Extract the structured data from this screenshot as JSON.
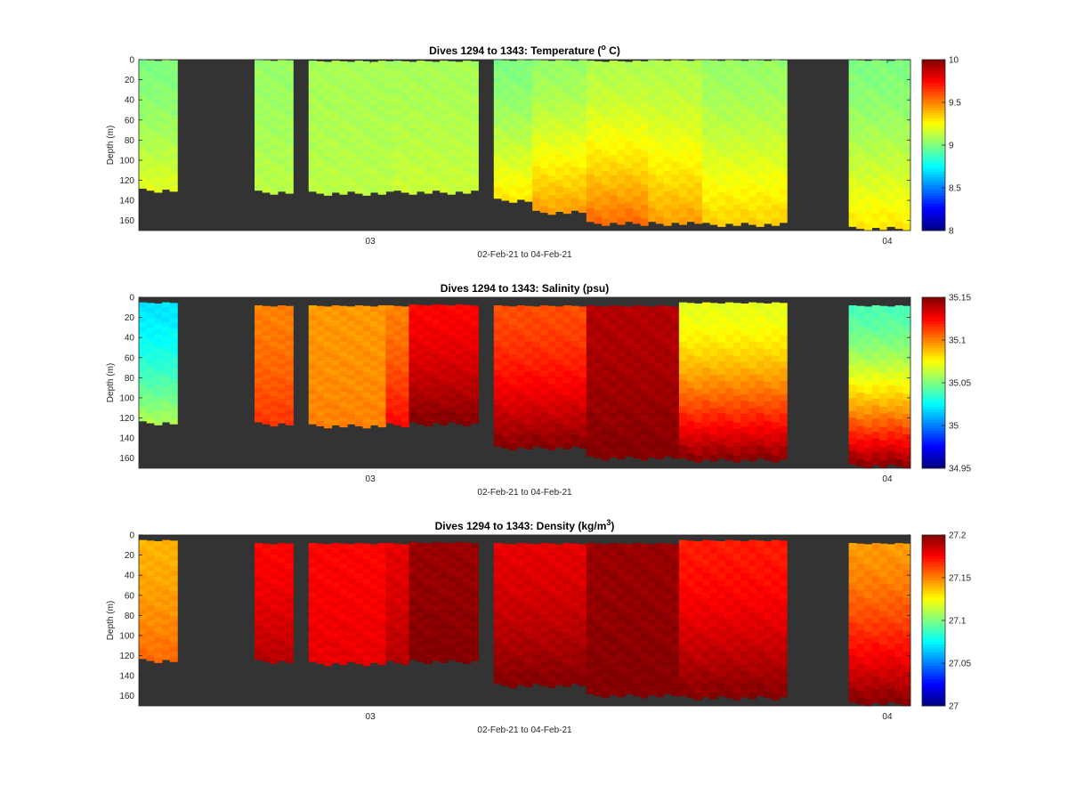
{
  "figure": {
    "background": "#ffffff",
    "no_data_color": "#333333",
    "colormap": "jet"
  },
  "chart_data": [
    {
      "type": "heatmap",
      "title": "Dives 1294 to 1343: Temperature (",
      "title_sup": "o",
      "title_after": " C)",
      "xlabel": "02-Feb-21 to 04-Feb-21",
      "ylabel": "Depth (m)",
      "x_ticks": [
        "03",
        "04"
      ],
      "y_ticks": [
        "0",
        "20",
        "40",
        "60",
        "80",
        "100",
        "120",
        "140",
        "160"
      ],
      "ylim": [
        0,
        170
      ],
      "y_reversed": true,
      "colorbar": {
        "min": 8,
        "max": 10,
        "ticks": [
          "10",
          "9.5",
          "9",
          "8.5",
          "8"
        ]
      },
      "profiles": [
        {
          "start": 0,
          "end": 5,
          "top": 0,
          "bottom": 130,
          "surface": 9.0,
          "deep": 9.2
        },
        {
          "start": 15,
          "end": 20,
          "top": 0,
          "bottom": 132,
          "surface": 9.05,
          "deep": 9.12
        },
        {
          "start": 22,
          "end": 33,
          "top": 1,
          "bottom": 133,
          "surface": 9.08,
          "deep": 9.12
        },
        {
          "start": 33,
          "end": 44,
          "top": 1,
          "bottom": 132,
          "surface": 9.08,
          "deep": 9.15
        },
        {
          "start": 46,
          "end": 51,
          "top": 0,
          "bottom": 140,
          "surface": 9.0,
          "deep": 9.3
        },
        {
          "start": 51,
          "end": 58,
          "top": 0,
          "bottom": 152,
          "surface": 9.05,
          "deep": 9.45
        },
        {
          "start": 58,
          "end": 66,
          "top": 1,
          "bottom": 163,
          "surface": 9.1,
          "deep": 9.55
        },
        {
          "start": 66,
          "end": 73,
          "top": 0,
          "bottom": 163,
          "surface": 9.1,
          "deep": 9.45
        },
        {
          "start": 73,
          "end": 84,
          "top": 0,
          "bottom": 164,
          "surface": 9.05,
          "deep": 9.35
        },
        {
          "start": 92,
          "end": 100,
          "top": 0,
          "bottom": 168,
          "surface": 9.0,
          "deep": 9.3
        }
      ]
    },
    {
      "type": "heatmap",
      "title": "Dives 1294 to 1343: Salinity (psu)",
      "xlabel": "02-Feb-21 to 04-Feb-21",
      "ylabel": "Depth (m)",
      "x_ticks": [
        "03",
        "04"
      ],
      "y_ticks": [
        "0",
        "20",
        "40",
        "60",
        "80",
        "100",
        "120",
        "140",
        "160"
      ],
      "ylim": [
        0,
        170
      ],
      "y_reversed": true,
      "colorbar": {
        "min": 34.95,
        "max": 35.15,
        "ticks": [
          "35.15",
          "35.1",
          "35.05",
          "35",
          "34.95"
        ]
      },
      "profiles": [
        {
          "start": 0,
          "end": 5,
          "top": 5,
          "bottom": 125,
          "surface": 35.02,
          "deep": 35.06
        },
        {
          "start": 15,
          "end": 20,
          "top": 8,
          "bottom": 126,
          "surface": 35.1,
          "deep": 35.115
        },
        {
          "start": 22,
          "end": 32,
          "top": 8,
          "bottom": 128,
          "surface": 35.095,
          "deep": 35.1
        },
        {
          "start": 32,
          "end": 35,
          "top": 8,
          "bottom": 127,
          "surface": 35.1,
          "deep": 35.125
        },
        {
          "start": 35,
          "end": 44,
          "top": 7,
          "bottom": 126,
          "surface": 35.125,
          "deep": 35.15
        },
        {
          "start": 46,
          "end": 58,
          "top": 8,
          "bottom": 150,
          "surface": 35.11,
          "deep": 35.15
        },
        {
          "start": 58,
          "end": 70,
          "top": 8,
          "bottom": 160,
          "surface": 35.14,
          "deep": 35.15
        },
        {
          "start": 70,
          "end": 84,
          "top": 5,
          "bottom": 162,
          "surface": 35.07,
          "deep": 35.15
        },
        {
          "start": 92,
          "end": 100,
          "top": 8,
          "bottom": 168,
          "surface": 35.04,
          "deep": 35.15
        }
      ]
    },
    {
      "type": "heatmap",
      "title": "Dives 1294 to 1343: Density (kg/m",
      "title_sup": "3",
      "title_after": ")",
      "xlabel": "02-Feb-21 to 04-Feb-21",
      "ylabel": "Depth (m)",
      "x_ticks": [
        "03",
        "04"
      ],
      "y_ticks": [
        "0",
        "20",
        "40",
        "60",
        "80",
        "100",
        "120",
        "140",
        "160"
      ],
      "ylim": [
        0,
        170
      ],
      "y_reversed": true,
      "colorbar": {
        "min": 27,
        "max": 27.2,
        "ticks": [
          "27.2",
          "27.15",
          "27.1",
          "27.05",
          "27"
        ]
      },
      "profiles": [
        {
          "start": 0,
          "end": 5,
          "top": 5,
          "bottom": 125,
          "surface": 27.14,
          "deep": 27.155
        },
        {
          "start": 15,
          "end": 20,
          "top": 8,
          "bottom": 126,
          "surface": 27.175,
          "deep": 27.19
        },
        {
          "start": 22,
          "end": 32,
          "top": 8,
          "bottom": 128,
          "surface": 27.175,
          "deep": 27.18
        },
        {
          "start": 32,
          "end": 35,
          "top": 8,
          "bottom": 127,
          "surface": 27.18,
          "deep": 27.19
        },
        {
          "start": 35,
          "end": 44,
          "top": 7,
          "bottom": 126,
          "surface": 27.195,
          "deep": 27.2
        },
        {
          "start": 46,
          "end": 58,
          "top": 8,
          "bottom": 150,
          "surface": 27.18,
          "deep": 27.2
        },
        {
          "start": 58,
          "end": 70,
          "top": 8,
          "bottom": 160,
          "surface": 27.195,
          "deep": 27.2
        },
        {
          "start": 70,
          "end": 84,
          "top": 5,
          "bottom": 162,
          "surface": 27.17,
          "deep": 27.2
        },
        {
          "start": 92,
          "end": 100,
          "top": 8,
          "bottom": 168,
          "surface": 27.145,
          "deep": 27.2
        }
      ]
    }
  ]
}
